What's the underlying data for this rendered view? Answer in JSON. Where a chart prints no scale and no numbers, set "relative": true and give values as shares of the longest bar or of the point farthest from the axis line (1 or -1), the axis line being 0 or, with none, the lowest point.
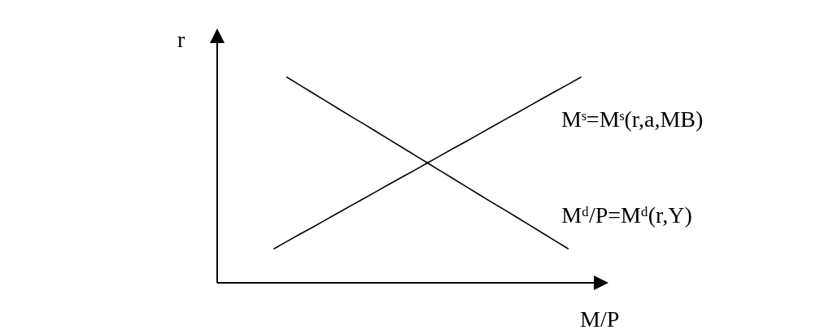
{
  "chart_data": {
    "type": "line",
    "relative": true,
    "xlabel": "M/P",
    "ylabel": "r",
    "tick_labels": false,
    "categories": [
      null,
      null,
      null,
      null,
      null,
      null,
      null,
      null,
      null,
      null,
      null,
      null,
      null,
      null,
      null,
      null,
      null,
      null,
      null,
      null,
      null,
      null,
      null,
      null,
      null
    ],
    "series": [
      {
        "name": "Mˢ=Mˢ(r,a,MB)",
        "color": "#000000",
        "values": [
          0.166,
          0.201,
          0.236,
          0.27,
          0.305,
          0.34,
          0.375,
          0.409,
          0.444,
          0.479,
          0.514,
          0.548,
          0.583,
          0.618,
          0.653,
          0.687,
          0.722,
          0.757,
          0.792,
          0.826,
          0.861,
          0.896,
          0.931,
          0.965,
          1
        ]
      },
      {
        "name": "Mᵈ/P=Mᵈ(r,Y)",
        "color": "#000000",
        "values": [
          null,
          1,
          0.962,
          0.924,
          0.886,
          0.848,
          0.81,
          0.773,
          0.735,
          0.697,
          0.659,
          0.621,
          0.583,
          0.545,
          0.507,
          0.469,
          0.431,
          0.393,
          0.356,
          0.318,
          0.28,
          0.242,
          0.204,
          0.166,
          null
        ]
      }
    ]
  }
}
